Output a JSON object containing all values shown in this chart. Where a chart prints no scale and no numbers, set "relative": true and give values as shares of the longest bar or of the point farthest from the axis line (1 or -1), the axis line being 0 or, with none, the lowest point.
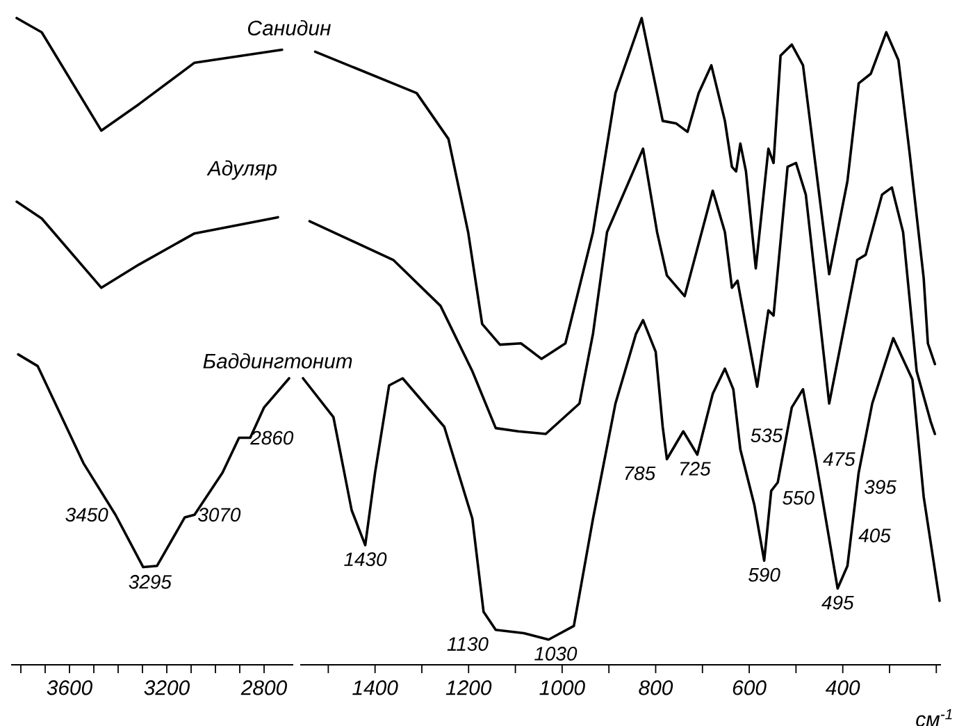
{
  "chart_data": [
    {
      "type": "line",
      "relative": true,
      "xlim": [
        3840,
        2680
      ],
      "xticks": [
        {
          "value": 3800,
          "label": null
        },
        {
          "value": 3700,
          "label": null
        },
        3600,
        {
          "value": 3500,
          "label": null
        },
        {
          "value": 3400,
          "label": null
        },
        {
          "value": 3300,
          "label": null
        },
        3200,
        {
          "value": 3100,
          "label": null
        },
        {
          "value": 3000,
          "label": null
        },
        {
          "value": 2900,
          "label": null
        },
        2800
      ],
      "series": [
        {
          "name": "Санидин",
          "color": "#000000",
          "x": [
            3817,
            3714,
            3469,
            3314,
            3086,
            2726
          ],
          "values": [
            1.0,
            0.978,
            0.826,
            0.867,
            0.931,
            0.951
          ]
        },
        {
          "name": "Адуляр",
          "color": "#000000",
          "x": [
            3817,
            3714,
            3469,
            3314,
            3086,
            2743
          ],
          "values": [
            0.716,
            0.69,
            0.583,
            0.619,
            0.667,
            0.692
          ]
        },
        {
          "name": "Баддингтонит",
          "color": "#000000",
          "x": [
            3811,
            3731,
            3543,
            3411,
            3297,
            3240,
            3126,
            3086,
            2971,
            2903,
            2857,
            2800,
            2697
          ],
          "values": [
            0.48,
            0.462,
            0.312,
            0.232,
            0.151,
            0.153,
            0.228,
            0.232,
            0.297,
            0.351,
            0.351,
            0.398,
            0.443
          ]
        }
      ],
      "annotations": [
        {
          "text": "3450",
          "x": 3411,
          "y": 0.232
        },
        {
          "text": "3295",
          "x": 3269,
          "y": 0.15
        },
        {
          "text": "3070",
          "x": 3103,
          "y": 0.232
        },
        {
          "text": "2860",
          "x": 2886,
          "y": 0.351
        }
      ]
    },
    {
      "type": "line",
      "relative": true,
      "xlim": [
        1560,
        190
      ],
      "xlabel": "см$^{-1}$",
      "xticks": [
        {
          "value": 1500,
          "label": null
        },
        1400,
        {
          "value": 1300,
          "label": null
        },
        1200,
        {
          "value": 1100,
          "label": null
        },
        1000,
        {
          "value": 900,
          "label": null
        },
        800,
        {
          "value": 700,
          "label": null
        },
        600,
        {
          "value": 500,
          "label": null
        },
        400,
        {
          "value": 300,
          "label": null
        },
        {
          "value": 200,
          "label": null
        }
      ],
      "series": [
        {
          "color": "#000000",
          "x": [
            1528,
            1311,
            1243,
            1201,
            1171,
            1133,
            1088,
            1044,
            993,
            934,
            886,
            830,
            797,
            785,
            756,
            732,
            708,
            681,
            652,
            637,
            628,
            619,
            607,
            586,
            559,
            548,
            533,
            509,
            485,
            429,
            390,
            366,
            340,
            307,
            281,
            257,
            227,
            218,
            203
          ],
          "values": [
            0.948,
            0.884,
            0.813,
            0.669,
            0.527,
            0.495,
            0.497,
            0.473,
            0.497,
            0.669,
            0.884,
            1.0,
            0.884,
            0.841,
            0.837,
            0.824,
            0.884,
            0.927,
            0.841,
            0.77,
            0.763,
            0.806,
            0.763,
            0.613,
            0.798,
            0.776,
            0.942,
            0.959,
            0.927,
            0.604,
            0.748,
            0.899,
            0.914,
            0.978,
            0.935,
            0.791,
            0.598,
            0.497,
            0.465
          ]
        },
        {
          "color": "#000000",
          "x": [
            1540,
            1361,
            1260,
            1192,
            1142,
            1094,
            1035,
            963,
            934,
            904,
            827,
            797,
            776,
            738,
            678,
            652,
            637,
            625,
            619,
            583,
            559,
            548,
            518,
            500,
            479,
            429,
            369,
            351,
            316,
            295,
            271,
            242,
            212,
            203
          ],
          "values": [
            0.686,
            0.626,
            0.555,
            0.454,
            0.366,
            0.361,
            0.357,
            0.404,
            0.512,
            0.669,
            0.798,
            0.669,
            0.602,
            0.57,
            0.733,
            0.669,
            0.583,
            0.594,
            0.57,
            0.43,
            0.548,
            0.54,
            0.77,
            0.776,
            0.727,
            0.404,
            0.626,
            0.634,
            0.727,
            0.738,
            0.669,
            0.454,
            0.376,
            0.357
          ]
        },
        {
          "color": "#000000",
          "x": [
            1554,
            1489,
            1450,
            1421,
            1400,
            1370,
            1341,
            1252,
            1192,
            1168,
            1142,
            1082,
            1029,
            975,
            934,
            886,
            842,
            827,
            800,
            785,
            776,
            741,
            711,
            678,
            652,
            634,
            619,
            589,
            568,
            553,
            539,
            509,
            485,
            458,
            411,
            390,
            366,
            337,
            292,
            251,
            227,
            193
          ],
          "values": [
            0.443,
            0.383,
            0.239,
            0.185,
            0.297,
            0.432,
            0.443,
            0.368,
            0.226,
            0.082,
            0.054,
            0.049,
            0.039,
            0.06,
            0.226,
            0.404,
            0.512,
            0.533,
            0.484,
            0.368,
            0.318,
            0.361,
            0.325,
            0.419,
            0.458,
            0.426,
            0.333,
            0.247,
            0.161,
            0.269,
            0.282,
            0.398,
            0.426,
            0.318,
            0.118,
            0.153,
            0.297,
            0.404,
            0.505,
            0.441,
            0.26,
            0.099
          ]
        }
      ],
      "annotations": [
        {
          "text": "1430",
          "x": 1421,
          "y": 0.185
        },
        {
          "text": "1130",
          "x": 1142,
          "y": 0.054
        },
        {
          "text": "1030",
          "x": 1014,
          "y": 0.039
        },
        {
          "text": "785",
          "x": 785,
          "y": 0.318
        },
        {
          "text": "725",
          "x": 717,
          "y": 0.325
        },
        {
          "text": "535",
          "x": 613,
          "y": 0.333
        },
        {
          "text": "590",
          "x": 568,
          "y": 0.161
        },
        {
          "text": "550",
          "x": 545,
          "y": 0.28
        },
        {
          "text": "475",
          "x": 458,
          "y": 0.318
        },
        {
          "text": "495",
          "x": 411,
          "y": 0.118
        },
        {
          "text": "395",
          "x": 370,
          "y": 0.275
        },
        {
          "text": "405",
          "x": 382,
          "y": 0.2
        }
      ]
    }
  ]
}
